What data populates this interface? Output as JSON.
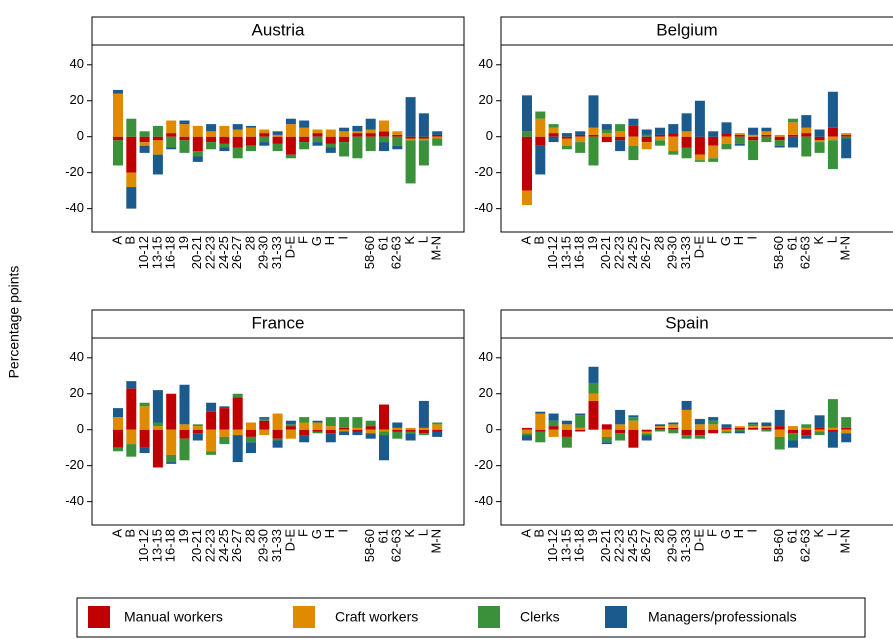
{
  "y_label": "Percentage points",
  "chart_data": [
    {
      "type": "bar",
      "stacked": true,
      "title": "Austria",
      "categories": [
        "A",
        "B",
        "10-12",
        "13-15",
        "16-18",
        "19",
        "20-21",
        "22-23",
        "24-25",
        "26-27",
        "28",
        "29-30",
        "31-33",
        "D-E",
        "F",
        "G",
        "H",
        "I",
        null,
        "58-60",
        "61",
        "62-63",
        "K",
        "L",
        "M-N"
      ],
      "ylim": [
        -53,
        51
      ],
      "yticks": [
        40,
        20,
        0,
        -20,
        -40
      ],
      "series": [
        {
          "name": "Manual workers",
          "color": "#c00000",
          "values": [
            -2,
            -20,
            -3,
            -2,
            2,
            -2,
            -8,
            -3,
            -4,
            -6,
            -5,
            2,
            -4,
            -10,
            -3,
            2,
            -4,
            -3,
            2,
            2,
            3,
            1,
            -1,
            -1,
            1
          ]
        },
        {
          "name": "Craft workers",
          "color": "#e08a00",
          "values": [
            24,
            -8,
            -2,
            -8,
            7,
            7,
            6,
            3,
            6,
            4,
            5,
            2,
            1,
            7,
            5,
            2,
            4,
            3,
            1,
            2,
            6,
            2,
            -1,
            -1,
            -1
          ]
        },
        {
          "name": "Clerks",
          "color": "#3a913a",
          "values": [
            -14,
            10,
            3,
            6,
            -6,
            -7,
            -3,
            -4,
            -2,
            -6,
            -3,
            -3,
            -4,
            -2,
            -4,
            -3,
            -2,
            -8,
            -12,
            -8,
            -3,
            -5,
            -24,
            -14,
            -4
          ]
        },
        {
          "name": "Managers/professionals",
          "color": "#1a5a8c",
          "values": [
            2,
            -12,
            -4,
            -11,
            -1,
            2,
            -3,
            4,
            -2,
            3,
            1,
            -2,
            2,
            3,
            4,
            -2,
            -3,
            2,
            3,
            6,
            -5,
            -2,
            22,
            13,
            2
          ]
        }
      ]
    },
    {
      "type": "bar",
      "stacked": true,
      "title": "Belgium",
      "categories": [
        "A",
        "B",
        "10-12",
        "13-15",
        "16-18",
        "19",
        "20-21",
        "22-23",
        "24-25",
        "26-27",
        "28",
        "29-30",
        "31-33",
        "D-E",
        "F",
        "G",
        "H",
        "I",
        null,
        "58-60",
        "61",
        "62-63",
        "K",
        "L",
        "M-N"
      ],
      "ylim": [
        -53,
        51
      ],
      "yticks": [
        40,
        20,
        0,
        -20,
        -40
      ],
      "series": [
        {
          "name": "Manual workers",
          "color": "#c00000",
          "values": [
            -30,
            -5,
            2,
            -1,
            1,
            1,
            -3,
            -2,
            6,
            -3,
            1,
            2,
            -6,
            -10,
            -5,
            2,
            1,
            -2,
            1,
            -2,
            1,
            2,
            -2,
            5,
            1
          ]
        },
        {
          "name": "Craft workers",
          "color": "#e08a00",
          "values": [
            -8,
            10,
            3,
            -4,
            -3,
            4,
            2,
            3,
            -5,
            -4,
            -2,
            -8,
            3,
            -3,
            -7,
            -4,
            1,
            1,
            2,
            1,
            7,
            3,
            -1,
            -2,
            1
          ]
        },
        {
          "name": "Clerks",
          "color": "#3a913a",
          "values": [
            3,
            4,
            2,
            -2,
            -6,
            -16,
            2,
            4,
            -8,
            1,
            -3,
            -2,
            -6,
            -1,
            -2,
            -3,
            -4,
            -11,
            -3,
            -3,
            2,
            -11,
            -6,
            -16,
            -1
          ]
        },
        {
          "name": "Managers/professionals",
          "color": "#1a5a8c",
          "values": [
            20,
            -16,
            -3,
            2,
            2,
            18,
            3,
            -6,
            4,
            3,
            4,
            5,
            10,
            20,
            3,
            6,
            -1,
            4,
            2,
            -1,
            -6,
            7,
            4,
            20,
            -11
          ]
        }
      ]
    },
    {
      "type": "bar",
      "stacked": true,
      "title": "France",
      "categories": [
        "A",
        "B",
        "10-12",
        "13-15",
        "16-18",
        "19",
        "20-21",
        "22-23",
        "24-25",
        "26-27",
        "28",
        "29-30",
        "31-33",
        "D-E",
        "F",
        "G",
        "H",
        "I",
        null,
        "58-60",
        "61",
        "62-63",
        "K",
        "L",
        "M-N"
      ],
      "ylim": [
        -53,
        51
      ],
      "yticks": [
        40,
        20,
        0,
        -20,
        -40
      ],
      "series": [
        {
          "name": "Manual workers",
          "color": "#c00000",
          "values": [
            -10,
            23,
            -10,
            -21,
            20,
            -5,
            -2,
            10,
            12,
            18,
            -4,
            5,
            -5,
            2,
            -3,
            -1,
            -2,
            1,
            -1,
            2,
            14,
            -1,
            -1,
            -2,
            -1
          ]
        },
        {
          "name": "Craft workers",
          "color": "#e08a00",
          "values": [
            7,
            -8,
            13,
            2,
            -14,
            3,
            2,
            -12,
            -4,
            -3,
            4,
            -3,
            9,
            -5,
            4,
            4,
            2,
            -1,
            1,
            -2,
            -1,
            1,
            1,
            1,
            3
          ]
        },
        {
          "name": "Clerks",
          "color": "#3a913a",
          "values": [
            -2,
            -7,
            2,
            2,
            -4,
            -12,
            1,
            -2,
            -4,
            2,
            -3,
            1,
            -1,
            1,
            3,
            -1,
            5,
            6,
            6,
            3,
            -2,
            -4,
            -1,
            -1,
            1
          ]
        },
        {
          "name": "Managers/professionals",
          "color": "#1a5a8c",
          "values": [
            5,
            4,
            -3,
            18,
            -1,
            22,
            -4,
            5,
            1,
            -15,
            -6,
            1,
            -4,
            2,
            -4,
            1,
            -5,
            -2,
            -2,
            -3,
            -14,
            3,
            -4,
            15,
            -3
          ]
        }
      ]
    },
    {
      "type": "bar",
      "stacked": true,
      "title": "Spain",
      "categories": [
        "A",
        "B",
        "10-12",
        "13-15",
        "16-18",
        "19",
        "20-21",
        "22-23",
        "24-25",
        "26-27",
        "28",
        "29-30",
        "31-33",
        "D-E",
        "F",
        "G",
        "H",
        "I",
        null,
        "58-60",
        "61",
        "62-63",
        "K",
        "L",
        "M-N"
      ],
      "ylim": [
        -53,
        51
      ],
      "yticks": [
        40,
        20,
        0,
        -20,
        -40
      ],
      "series": [
        {
          "name": "Manual workers",
          "color": "#c00000",
          "values": [
            1,
            -1,
            2,
            -4,
            -1,
            16,
            3,
            -2,
            -10,
            -1,
            1,
            1,
            -3,
            -3,
            -2,
            1,
            1,
            1,
            1,
            2,
            -2,
            -3,
            1,
            -1,
            1
          ]
        },
        {
          "name": "Craft workers",
          "color": "#e08a00",
          "values": [
            -2,
            9,
            -4,
            3,
            1,
            4,
            -4,
            3,
            5,
            -1,
            1,
            2,
            11,
            3,
            3,
            -1,
            1,
            1,
            1,
            -4,
            2,
            1,
            -1,
            1,
            -2
          ]
        },
        {
          "name": "Clerks",
          "color": "#3a913a",
          "values": [
            -1,
            -6,
            3,
            -6,
            7,
            6,
            -3,
            -4,
            2,
            -1,
            -1,
            -2,
            -2,
            -2,
            2,
            -1,
            -1,
            1,
            -1,
            -7,
            -4,
            2,
            -2,
            16,
            6
          ]
        },
        {
          "name": "Managers/professionals",
          "color": "#1a5a8c",
          "values": [
            -3,
            1,
            4,
            2,
            1,
            9,
            -1,
            8,
            1,
            -3,
            1,
            1,
            5,
            3,
            2,
            2,
            -1,
            1,
            2,
            9,
            -4,
            -2,
            7,
            -9,
            -5
          ]
        }
      ]
    }
  ]
}
